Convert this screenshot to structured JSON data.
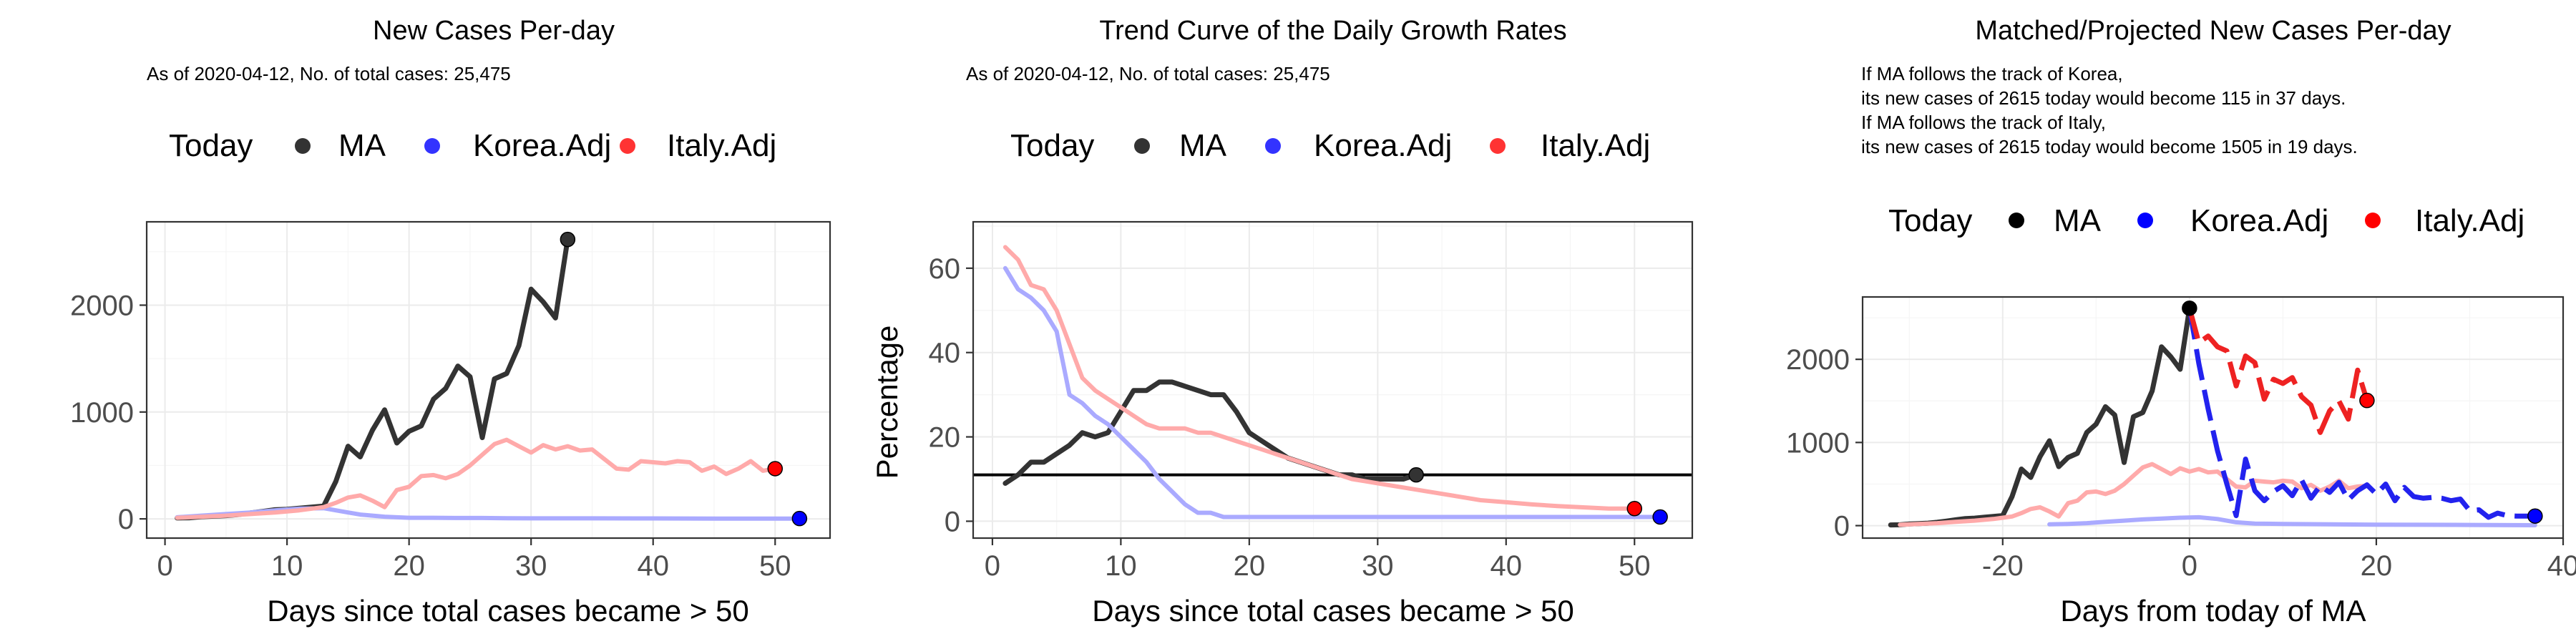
{
  "chart_data": [
    {
      "type": "line",
      "title": "New Cases Per-day",
      "subtitle_lines": [
        "As of 2020-04-12, No. of total cases: 25,475"
      ],
      "legend": {
        "title": "Today",
        "placement": "top",
        "entries": [
          "MA",
          "Korea.Adj",
          "Italy.Adj"
        ]
      },
      "xlabel": "Days since total cases became > 50",
      "ylabel": "",
      "xlim": [
        -1.5,
        54.5
      ],
      "ylim": [
        -180,
        2780
      ],
      "xticks": [
        0,
        10,
        20,
        30,
        40,
        50
      ],
      "yticks": [
        0,
        1000,
        2000
      ],
      "grid": true,
      "colors": {
        "MA": "#333333",
        "Korea.Adj": "#0000ff",
        "Italy.Adj": "#ff0000",
        "Korea.Adj.line": "#aaaaff",
        "Italy.Adj.line": "#ffaaaa"
      },
      "series": [
        {
          "name": "MA",
          "color": "#333333",
          "width": 7,
          "end_marker": true,
          "x": [
            1,
            2,
            3,
            4,
            5,
            6,
            7,
            8,
            9,
            10,
            11,
            12,
            13,
            14,
            15,
            16,
            17,
            18,
            19,
            20,
            21,
            22,
            23,
            24,
            25,
            26,
            27,
            28,
            29,
            30,
            31,
            32,
            33
          ],
          "y": [
            8,
            10,
            20,
            25,
            30,
            40,
            55,
            70,
            85,
            90,
            100,
            110,
            120,
            350,
            680,
            580,
            830,
            1020,
            710,
            820,
            870,
            1120,
            1220,
            1430,
            1330,
            760,
            1310,
            1360,
            1620,
            2150,
            2030,
            1880,
            2615
          ]
        },
        {
          "name": "Korea.Adj",
          "color": "#aaaaff",
          "width": 6,
          "end_marker": true,
          "marker_color": "#0000ff",
          "x": [
            1,
            3,
            5,
            7,
            9,
            11,
            13,
            14,
            15,
            16,
            17,
            18,
            19,
            20,
            22,
            24,
            26,
            28,
            30,
            35,
            40,
            45,
            50,
            52
          ],
          "y": [
            15,
            30,
            45,
            60,
            80,
            95,
            100,
            80,
            60,
            40,
            30,
            20,
            15,
            10,
            10,
            8,
            8,
            6,
            5,
            5,
            4,
            3,
            3,
            3
          ]
        },
        {
          "name": "Italy.Adj",
          "color": "#ffaaaa",
          "width": 6,
          "end_marker": true,
          "marker_color": "#ff0000",
          "x": [
            1,
            3,
            5,
            7,
            9,
            11,
            13,
            14,
            15,
            16,
            17,
            18,
            19,
            20,
            21,
            22,
            23,
            24,
            25,
            26,
            27,
            28,
            29,
            30,
            31,
            32,
            33,
            34,
            35,
            36,
            37,
            38,
            39,
            40,
            41,
            42,
            43,
            44,
            45,
            46,
            47,
            48,
            49,
            50
          ],
          "y": [
            10,
            20,
            30,
            45,
            60,
            80,
            110,
            150,
            200,
            220,
            170,
            110,
            270,
            300,
            400,
            410,
            380,
            420,
            500,
            600,
            700,
            740,
            680,
            620,
            690,
            650,
            680,
            640,
            650,
            560,
            470,
            460,
            540,
            530,
            520,
            540,
            530,
            450,
            490,
            420,
            470,
            540,
            450,
            470
          ]
        }
      ]
    },
    {
      "type": "line",
      "title": "Trend Curve of the Daily Growth Rates",
      "subtitle_lines": [
        "As of 2020-04-12, No. of total cases: 25,475"
      ],
      "legend": {
        "title": "Today",
        "placement": "top",
        "entries": [
          "MA",
          "Korea.Adj",
          "Italy.Adj"
        ]
      },
      "xlabel": "Days since total cases became > 50",
      "ylabel": "Percentage",
      "xlim": [
        -1.5,
        54.5
      ],
      "ylim": [
        -4,
        71
      ],
      "xticks": [
        0,
        10,
        20,
        30,
        40,
        50
      ],
      "yticks": [
        0,
        20,
        40,
        60
      ],
      "hline": 11,
      "grid": true,
      "colors": {
        "MA": "#333333",
        "Korea.Adj": "#0000ff",
        "Italy.Adj": "#ff0000",
        "Korea.Adj.line": "#aaaaff",
        "Italy.Adj.line": "#ffaaaa"
      },
      "series": [
        {
          "name": "MA",
          "color": "#333333",
          "width": 7,
          "end_marker": true,
          "x": [
            1,
            2,
            3,
            4,
            5,
            6,
            7,
            8,
            9,
            10,
            11,
            12,
            13,
            14,
            15,
            16,
            17,
            18,
            19,
            20,
            21,
            22,
            23,
            24,
            25,
            26,
            27,
            28,
            29,
            30,
            31,
            32,
            33
          ],
          "y": [
            9,
            11,
            14,
            14,
            16,
            18,
            21,
            20,
            21,
            26,
            31,
            31,
            33,
            33,
            32,
            31,
            30,
            30,
            26,
            21,
            19,
            17,
            15,
            14,
            13,
            12,
            11,
            11,
            10,
            10,
            10,
            10,
            11
          ]
        },
        {
          "name": "Korea.Adj",
          "color": "#aaaaff",
          "width": 6,
          "end_marker": true,
          "marker_color": "#0000ff",
          "x": [
            1,
            2,
            3,
            4,
            5,
            6,
            7,
            8,
            9,
            10,
            11,
            12,
            13,
            14,
            15,
            16,
            17,
            18,
            19,
            20,
            22,
            25,
            30,
            35,
            40,
            45,
            50,
            52
          ],
          "y": [
            60,
            55,
            53,
            50,
            45,
            30,
            28,
            25,
            23,
            20,
            17,
            14,
            10,
            7,
            4,
            2,
            2,
            1,
            1,
            1,
            1,
            1,
            1,
            1,
            1,
            1,
            1,
            1
          ]
        },
        {
          "name": "Italy.Adj",
          "color": "#ffaaaa",
          "width": 6,
          "end_marker": true,
          "marker_color": "#ff0000",
          "x": [
            1,
            2,
            3,
            4,
            5,
            6,
            7,
            8,
            9,
            10,
            11,
            12,
            13,
            14,
            15,
            16,
            17,
            18,
            19,
            20,
            21,
            22,
            23,
            24,
            25,
            26,
            27,
            28,
            29,
            30,
            32,
            34,
            36,
            38,
            40,
            42,
            44,
            46,
            48,
            50
          ],
          "y": [
            65,
            62,
            56,
            55,
            50,
            42,
            34,
            31,
            29,
            27,
            25,
            23,
            22,
            22,
            22,
            21,
            21,
            20,
            19,
            18,
            17,
            16,
            15,
            14,
            13,
            12,
            11,
            10,
            9.5,
            9,
            8,
            7,
            6,
            5,
            4.5,
            4,
            3.6,
            3.3,
            3,
            3
          ]
        }
      ]
    },
    {
      "type": "line",
      "title": "Matched/Projected New Cases Per-day",
      "subtitle_lines": [
        "If MA follows the track of Korea,",
        "its new cases of 2615 today would become 115 in 37 days.",
        "If MA follows the track of Italy,",
        "its new cases of 2615 today would become 1505 in 19 days."
      ],
      "legend": {
        "title": "Today",
        "placement": "top",
        "entries": [
          "MA",
          "Korea.Adj",
          "Italy.Adj"
        ]
      },
      "xlabel": "Days from today of MA",
      "ylabel": "",
      "xlim": [
        -35,
        40
      ],
      "ylim": [
        -150,
        2750
      ],
      "xticks": [
        -20,
        0,
        20,
        40
      ],
      "yticks": [
        0,
        1000,
        2000
      ],
      "grid": true,
      "colors": {
        "MA": "#000000",
        "Korea.Adj": "#0000ff",
        "Italy.Adj": "#ff0000",
        "Korea.Adj.line": "#aaaaff",
        "Italy.Adj.line": "#ffaaaa"
      },
      "series": [
        {
          "name": "MA",
          "color": "#333333",
          "width": 7,
          "end_marker": true,
          "marker_color": "#000000",
          "x": [
            -32,
            -31,
            -30,
            -29,
            -28,
            -27,
            -26,
            -25,
            -24,
            -23,
            -22,
            -21,
            -20,
            -19,
            -18,
            -17,
            -16,
            -15,
            -14,
            -13,
            -12,
            -11,
            -10,
            -9,
            -8,
            -7,
            -6,
            -5,
            -4,
            -3,
            -2,
            -1,
            0
          ],
          "y": [
            8,
            10,
            20,
            25,
            30,
            40,
            55,
            70,
            85,
            90,
            100,
            110,
            120,
            350,
            680,
            580,
            830,
            1020,
            710,
            820,
            870,
            1120,
            1220,
            1430,
            1330,
            760,
            1310,
            1360,
            1620,
            2150,
            2030,
            1880,
            2615
          ]
        },
        {
          "name": "Korea.Adj past",
          "color": "#aaaaff",
          "width": 6,
          "end_marker": false,
          "x": [
            -15,
            -13,
            -11,
            -9,
            -7,
            -5,
            -3,
            -1,
            1,
            3,
            5,
            7,
            10,
            15,
            20,
            25,
            30,
            37
          ],
          "y": [
            15,
            20,
            30,
            45,
            60,
            75,
            85,
            95,
            100,
            80,
            40,
            25,
            20,
            15,
            12,
            10,
            8,
            5
          ]
        },
        {
          "name": "Italy.Adj past",
          "color": "#ffaaaa",
          "width": 6,
          "end_marker": false,
          "x": [
            -31,
            -29,
            -27,
            -25,
            -23,
            -21,
            -19,
            -18,
            -17,
            -16,
            -15,
            -14,
            -13,
            -12,
            -11,
            -10,
            -9,
            -8,
            -7,
            -6,
            -5,
            -4,
            -3,
            -2,
            -1,
            0,
            1,
            2,
            3,
            4,
            5,
            6,
            7,
            8,
            9,
            10,
            11,
            12,
            13,
            14,
            15,
            16,
            17,
            18,
            19
          ],
          "y": [
            10,
            20,
            30,
            45,
            60,
            80,
            110,
            150,
            200,
            220,
            170,
            110,
            270,
            300,
            400,
            410,
            380,
            420,
            500,
            600,
            700,
            740,
            680,
            620,
            690,
            650,
            680,
            640,
            650,
            560,
            470,
            460,
            540,
            530,
            520,
            540,
            530,
            450,
            490,
            420,
            470,
            540,
            450,
            470,
            480
          ]
        },
        {
          "name": "Korea.Adj projected",
          "color": "#2222ee",
          "width": 7,
          "dash": "44 14",
          "end_marker": true,
          "marker_color": "#0000ff",
          "x": [
            0,
            1,
            2,
            3,
            4,
            5,
            6,
            7,
            8,
            9,
            10,
            11,
            12,
            13,
            14,
            15,
            16,
            17,
            18,
            19,
            20,
            21,
            22,
            23,
            24,
            25,
            26,
            27,
            28,
            29,
            30,
            31,
            32,
            33,
            34,
            35,
            36,
            37
          ],
          "y": [
            2615,
            1950,
            1400,
            900,
            500,
            120,
            800,
            420,
            300,
            410,
            480,
            360,
            550,
            330,
            480,
            400,
            520,
            310,
            420,
            490,
            380,
            500,
            300,
            460,
            350,
            330,
            340,
            330,
            300,
            320,
            180,
            190,
            100,
            150,
            120,
            115,
            115,
            115
          ]
        },
        {
          "name": "Italy.Adj projected",
          "color": "#ee2222",
          "width": 7,
          "dash": "44 14",
          "end_marker": true,
          "marker_color": "#ff0000",
          "x": [
            0,
            1,
            2,
            3,
            4,
            5,
            6,
            7,
            8,
            9,
            10,
            11,
            12,
            13,
            14,
            15,
            16,
            17,
            18,
            19
          ],
          "y": [
            2615,
            2200,
            2280,
            2150,
            2100,
            1680,
            2040,
            1960,
            1520,
            1760,
            1710,
            1780,
            1550,
            1450,
            1120,
            1380,
            1500,
            1280,
            1870,
            1505
          ]
        }
      ]
    }
  ]
}
